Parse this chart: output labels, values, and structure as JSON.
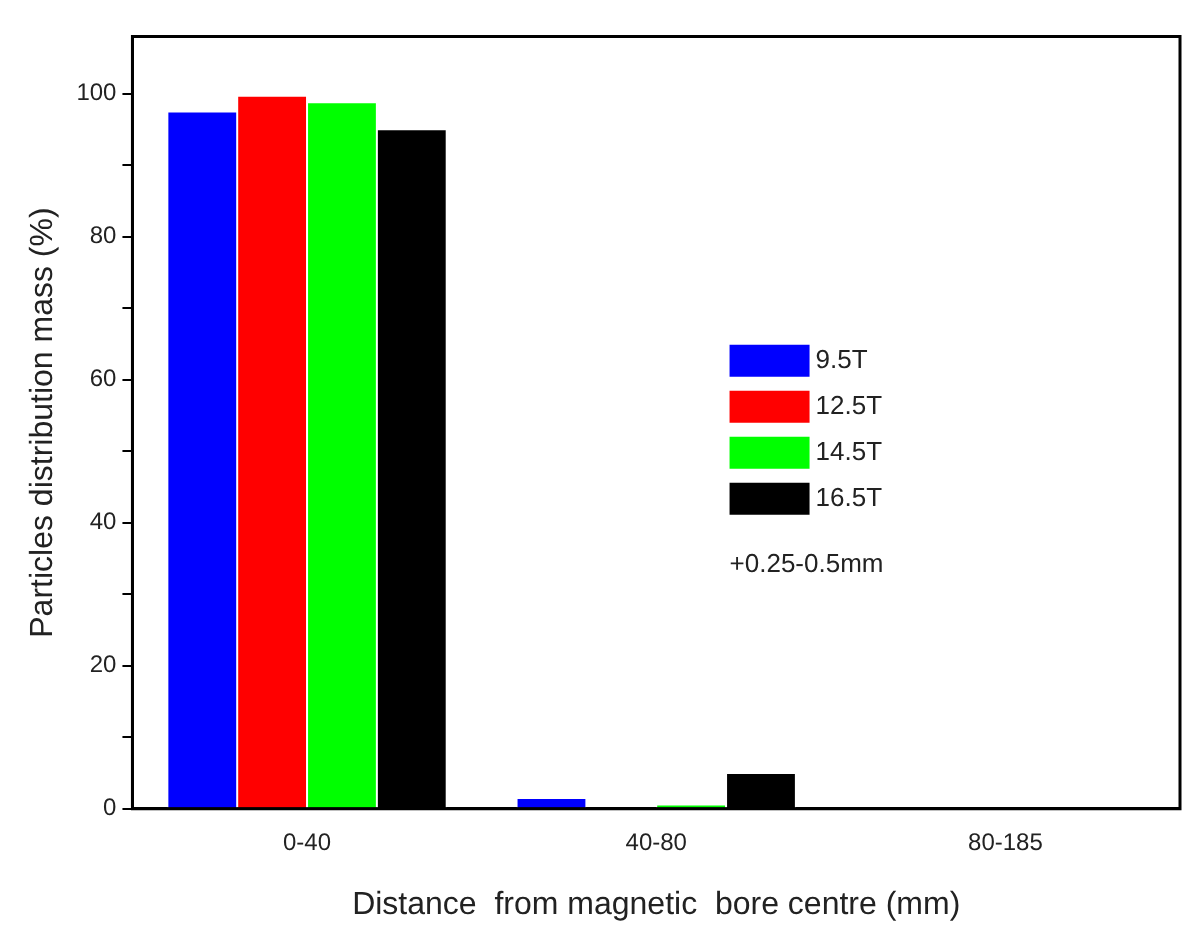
{
  "chart_data": {
    "type": "bar",
    "xlabel": "Distance  from magnetic  bore centre (mm)",
    "ylabel": "Particles distribution mass (%)",
    "categories": [
      "0-40",
      "40-80",
      "80-185"
    ],
    "series": [
      {
        "name": "9.5T",
        "color": "#0000ff",
        "values": [
          97.5,
          1.5,
          0
        ]
      },
      {
        "name": "12.5T",
        "color": "#ff0000",
        "values": [
          99.7,
          0,
          0
        ]
      },
      {
        "name": "14.5T",
        "color": "#00ff00",
        "values": [
          98.8,
          0.6,
          0
        ]
      },
      {
        "name": "16.5T",
        "color": "#000000",
        "values": [
          95,
          5,
          0
        ]
      }
    ],
    "ylim": [
      0,
      108
    ],
    "yticks": [
      0,
      {
        "value": 10,
        "label": null
      },
      20,
      {
        "value": 30,
        "label": null
      },
      40,
      {
        "value": 50,
        "label": null
      },
      60,
      {
        "value": 70,
        "label": null
      },
      80,
      {
        "value": 90,
        "label": null
      },
      100
    ],
    "annotations": [
      "+0.25-0.5mm"
    ],
    "legend": "right",
    "grid": false
  }
}
